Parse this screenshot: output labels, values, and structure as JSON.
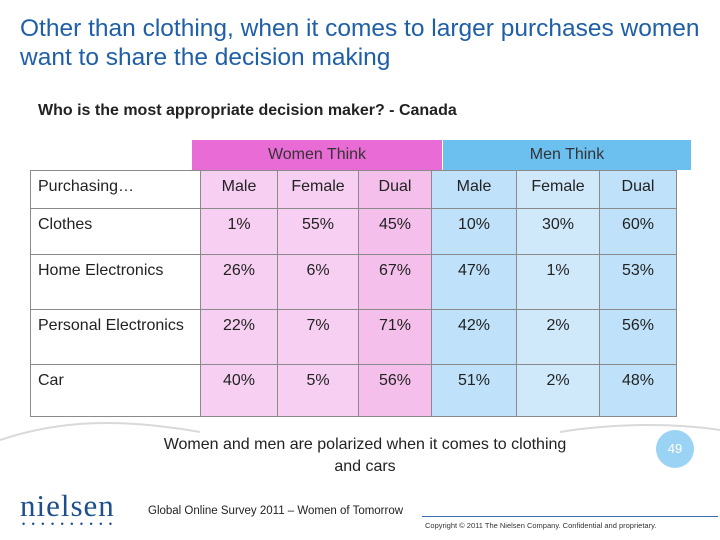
{
  "title": "Other than clothing, when it comes to larger purchases women want to share the decision making",
  "subtitle": "Who is the most appropriate decision maker? - Canada",
  "groups": {
    "women": "Women Think",
    "men": "Men Think"
  },
  "table": {
    "corner": "Purchasing…",
    "columns": [
      "Male",
      "Female",
      "Dual",
      "Male",
      "Female",
      "Dual"
    ],
    "rows": [
      {
        "label": "Clothes",
        "values": [
          "1%",
          "55%",
          "45%",
          "10%",
          "30%",
          "60%"
        ]
      },
      {
        "label": "Home Electronics",
        "values": [
          "26%",
          "6%",
          "67%",
          "47%",
          "1%",
          "53%"
        ]
      },
      {
        "label": "Personal Electronics",
        "values": [
          "22%",
          "7%",
          "71%",
          "42%",
          "2%",
          "56%"
        ]
      },
      {
        "label": "Car",
        "values": [
          "40%",
          "5%",
          "56%",
          "51%",
          "2%",
          "48%"
        ]
      }
    ]
  },
  "conclusion": "Women and men are polarized when it comes to clothing and cars",
  "page_number": "49",
  "logo": "nielsen",
  "logo_dots": "• • • • • • • • • •",
  "source": "Global Online Survey 2011 – Women of Tomorrow",
  "copyright": "Copyright © 2011 The Nielsen Company. Confidential and proprietary.",
  "colors": {
    "title": "#1f5fa8",
    "women": "#e96bd5",
    "men": "#6cc0f0",
    "women_light": "#f7cff2",
    "men_light": "#bfe1f9"
  }
}
